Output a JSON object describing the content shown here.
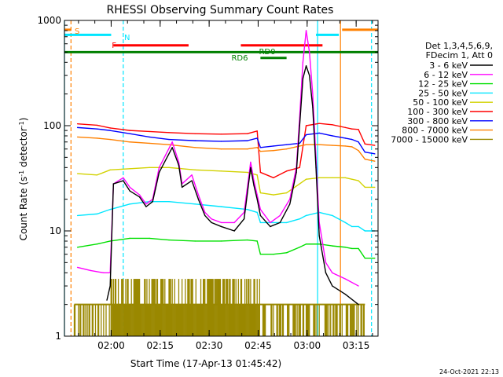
{
  "chart_data": {
    "type": "line",
    "title": "RHESSI Observing Summary Count Rates",
    "xlabel": "Start Time (17-Apr-13 01:45:42)",
    "ylabel": "Count Rate (s⁻¹ detector⁻¹)",
    "ylabel_parts": [
      "Count Rate (s",
      "-1",
      " detector",
      "-1",
      ")"
    ],
    "y_scale": "log",
    "ylim": [
      1,
      1000
    ],
    "xlim_minutes": [
      0,
      96
    ],
    "x_ticks": [
      {
        "label": "02:00",
        "min": 14.3
      },
      {
        "label": "02:15",
        "min": 29.3
      },
      {
        "label": "02:30",
        "min": 44.3
      },
      {
        "label": "02:45",
        "min": 59.3
      },
      {
        "label": "03:00",
        "min": 74.3
      },
      {
        "label": "03:15",
        "min": 89.3
      }
    ],
    "y_ticks": [
      {
        "label": "1",
        "value": 1
      },
      {
        "label": "10",
        "value": 10
      },
      {
        "label": "100",
        "value": 100
      },
      {
        "label": "1000",
        "value": 1000
      }
    ],
    "legend": {
      "placement": "right",
      "header": [
        "Det 1,3,4,5,6,9,",
        "FDecim 1, Att 0"
      ],
      "entries": [
        {
          "label": "3 - 6 keV",
          "color": "#000000"
        },
        {
          "label": "6 - 12 keV",
          "color": "#ff00ff"
        },
        {
          "label": "12 - 25 keV",
          "color": "#00e000"
        },
        {
          "label": "25 - 50 keV",
          "color": "#00e6ff"
        },
        {
          "label": "50 - 100 keV",
          "color": "#d2d200"
        },
        {
          "label": "100 - 300 keV",
          "color": "#ff0000"
        },
        {
          "label": "300 - 800 keV",
          "color": "#0000ff"
        },
        {
          "label": "800 - 7000 keV",
          "color": "#ff8000"
        },
        {
          "label": "7000 - 15000 keV",
          "color": "#9a8800"
        }
      ]
    },
    "series": [
      {
        "color": "#ff0000",
        "points": [
          [
            4,
            104
          ],
          [
            10,
            101
          ],
          [
            14,
            95
          ],
          [
            20,
            90
          ],
          [
            26,
            88
          ],
          [
            32,
            86
          ],
          [
            40,
            84
          ],
          [
            48,
            83
          ],
          [
            56,
            84
          ],
          [
            59,
            89
          ],
          [
            60,
            36
          ],
          [
            64,
            32
          ],
          [
            68,
            37
          ],
          [
            72,
            40
          ],
          [
            74,
            100
          ],
          [
            78,
            105
          ],
          [
            82,
            102
          ],
          [
            86,
            96
          ],
          [
            88,
            93
          ],
          [
            90,
            92
          ],
          [
            92,
            67
          ],
          [
            95,
            65
          ]
        ]
      },
      {
        "color": "#0000ff",
        "points": [
          [
            4,
            96
          ],
          [
            10,
            93
          ],
          [
            14,
            90
          ],
          [
            20,
            84
          ],
          [
            26,
            78
          ],
          [
            32,
            74
          ],
          [
            40,
            72
          ],
          [
            48,
            71
          ],
          [
            56,
            72
          ],
          [
            59,
            76
          ],
          [
            60,
            62
          ],
          [
            64,
            64
          ],
          [
            68,
            66
          ],
          [
            72,
            68
          ],
          [
            74,
            82
          ],
          [
            78,
            85
          ],
          [
            82,
            80
          ],
          [
            86,
            76
          ],
          [
            88,
            74
          ],
          [
            90,
            70
          ],
          [
            92,
            56
          ],
          [
            95,
            54
          ]
        ]
      },
      {
        "color": "#ff8000",
        "points": [
          [
            4,
            78
          ],
          [
            10,
            76
          ],
          [
            14,
            74
          ],
          [
            20,
            70
          ],
          [
            26,
            68
          ],
          [
            32,
            66
          ],
          [
            40,
            62
          ],
          [
            48,
            60
          ],
          [
            56,
            60
          ],
          [
            59,
            62
          ],
          [
            60,
            57
          ],
          [
            64,
            58
          ],
          [
            68,
            60
          ],
          [
            72,
            64
          ],
          [
            74,
            66
          ],
          [
            78,
            66
          ],
          [
            82,
            65
          ],
          [
            86,
            64
          ],
          [
            88,
            63
          ],
          [
            90,
            58
          ],
          [
            92,
            48
          ],
          [
            95,
            46
          ]
        ]
      },
      {
        "color": "#d2d200",
        "points": [
          [
            4,
            35
          ],
          [
            10,
            34
          ],
          [
            14,
            38
          ],
          [
            20,
            39
          ],
          [
            26,
            40
          ],
          [
            32,
            40
          ],
          [
            40,
            38
          ],
          [
            48,
            37
          ],
          [
            56,
            36
          ],
          [
            59,
            34
          ],
          [
            60,
            23
          ],
          [
            64,
            22
          ],
          [
            68,
            23
          ],
          [
            72,
            28
          ],
          [
            74,
            31
          ],
          [
            78,
            32
          ],
          [
            82,
            32
          ],
          [
            86,
            32
          ],
          [
            88,
            31
          ],
          [
            90,
            30
          ],
          [
            92,
            26
          ],
          [
            95,
            26
          ]
        ]
      },
      {
        "color": "#00e6ff",
        "points": [
          [
            4,
            14
          ],
          [
            10,
            14.5
          ],
          [
            14,
            16
          ],
          [
            20,
            18
          ],
          [
            26,
            19
          ],
          [
            32,
            19
          ],
          [
            40,
            18
          ],
          [
            48,
            17
          ],
          [
            56,
            16
          ],
          [
            59,
            15
          ],
          [
            60,
            12
          ],
          [
            64,
            12
          ],
          [
            68,
            12
          ],
          [
            72,
            13
          ],
          [
            74,
            14
          ],
          [
            78,
            15
          ],
          [
            82,
            14
          ],
          [
            86,
            12
          ],
          [
            88,
            11
          ],
          [
            90,
            11
          ],
          [
            92,
            10
          ],
          [
            95,
            10
          ]
        ]
      },
      {
        "color": "#00e000",
        "points": [
          [
            4,
            7
          ],
          [
            10,
            7.5
          ],
          [
            14,
            8
          ],
          [
            20,
            8.5
          ],
          [
            26,
            8.5
          ],
          [
            32,
            8.2
          ],
          [
            40,
            8
          ],
          [
            48,
            8
          ],
          [
            56,
            8.2
          ],
          [
            59,
            8
          ],
          [
            60,
            6
          ],
          [
            64,
            6
          ],
          [
            68,
            6.2
          ],
          [
            72,
            7
          ],
          [
            74,
            7.5
          ],
          [
            78,
            7.5
          ],
          [
            82,
            7.2
          ],
          [
            86,
            7
          ],
          [
            88,
            6.8
          ],
          [
            90,
            6.8
          ],
          [
            92,
            5.5
          ],
          [
            95,
            5.5
          ]
        ]
      },
      {
        "color": "#ff00ff",
        "points": [
          [
            4,
            4.5
          ],
          [
            8,
            4.2
          ],
          [
            12,
            4
          ],
          [
            14,
            4
          ],
          [
            15,
            28
          ],
          [
            18,
            32
          ],
          [
            20,
            26
          ],
          [
            23,
            22
          ],
          [
            25,
            18
          ],
          [
            27,
            20
          ],
          [
            29,
            40
          ],
          [
            33,
            70
          ],
          [
            35,
            45
          ],
          [
            36,
            28
          ],
          [
            39,
            34
          ],
          [
            41,
            22
          ],
          [
            43,
            15
          ],
          [
            45,
            13
          ],
          [
            48,
            12
          ],
          [
            52,
            12
          ],
          [
            55,
            15
          ],
          [
            57,
            45
          ],
          [
            58,
            30
          ],
          [
            59,
            22
          ],
          [
            60,
            16
          ],
          [
            63,
            12
          ],
          [
            66,
            14
          ],
          [
            69,
            20
          ],
          [
            71,
            40
          ],
          [
            72,
            120
          ],
          [
            73,
            400
          ],
          [
            74,
            800
          ],
          [
            75,
            500
          ],
          [
            76,
            200
          ],
          [
            77,
            50
          ],
          [
            78,
            12
          ],
          [
            80,
            5
          ],
          [
            82,
            4
          ],
          [
            86,
            3.5
          ],
          [
            90,
            3
          ]
        ]
      },
      {
        "color": "#000000",
        "points": [
          [
            13,
            2.2
          ],
          [
            14,
            3
          ],
          [
            15,
            28
          ],
          [
            18,
            30
          ],
          [
            20,
            24
          ],
          [
            23,
            21
          ],
          [
            25,
            17
          ],
          [
            27,
            19
          ],
          [
            29,
            36
          ],
          [
            33,
            62
          ],
          [
            35,
            42
          ],
          [
            36,
            26
          ],
          [
            39,
            30
          ],
          [
            41,
            20
          ],
          [
            43,
            14
          ],
          [
            45,
            12
          ],
          [
            48,
            11
          ],
          [
            52,
            10
          ],
          [
            55,
            13
          ],
          [
            57,
            40
          ],
          [
            58,
            27
          ],
          [
            59,
            20
          ],
          [
            60,
            14
          ],
          [
            63,
            11
          ],
          [
            66,
            12
          ],
          [
            69,
            18
          ],
          [
            71,
            36
          ],
          [
            72,
            100
          ],
          [
            73,
            280
          ],
          [
            74,
            370
          ],
          [
            75,
            300
          ],
          [
            76,
            150
          ],
          [
            77,
            40
          ],
          [
            78,
            9
          ],
          [
            80,
            4
          ],
          [
            82,
            3
          ],
          [
            86,
            2.5
          ],
          [
            90,
            2
          ]
        ]
      }
    ],
    "background_series": {
      "color": "#9a8800",
      "x_range": [
        3,
        92
      ],
      "bands": [
        [
          1,
          2
        ],
        [
          2,
          3.5
        ]
      ]
    },
    "flag_bars": [
      {
        "label": "S",
        "color": "#ff8000",
        "x_start": 0,
        "x_end": 2,
        "y": 815
      },
      {
        "label": "N",
        "color": "#00e6ff",
        "x_start": 0,
        "x_end": 14.3,
        "y": 730
      },
      {
        "label": "F",
        "color": "#ff0000",
        "x_start": 15,
        "x_end": 38,
        "y": 580
      },
      {
        "label": "",
        "color": "#ff0000",
        "x_start": 54,
        "x_end": 79,
        "y": 580
      },
      {
        "label": "RD0",
        "color": "#008000",
        "x_start": 0,
        "x_end": 96,
        "y": 500
      },
      {
        "label": "RD6",
        "color": "#008000",
        "x_start": 60,
        "x_end": 68,
        "y": 440
      },
      {
        "label": "",
        "color": "#00e6ff",
        "x_start": 77,
        "x_end": 84,
        "y": 730
      },
      {
        "label": "",
        "color": "#ff8000",
        "x_start": 85,
        "x_end": 96,
        "y": 815
      }
    ],
    "vlines": [
      {
        "x": 0,
        "color": "#00e6ff",
        "style": "solid"
      },
      {
        "x": 2,
        "color": "#ff8000",
        "style": "dashed"
      },
      {
        "x": 18,
        "color": "#00e6ff",
        "style": "dashed"
      },
      {
        "x": 77.5,
        "color": "#00e6ff",
        "style": "solid"
      },
      {
        "x": 84.5,
        "color": "#ff8000",
        "style": "solid"
      },
      {
        "x": 94,
        "color": "#00e6ff",
        "style": "dashed"
      }
    ]
  },
  "timestamp": "24-Oct-2021 22:13"
}
